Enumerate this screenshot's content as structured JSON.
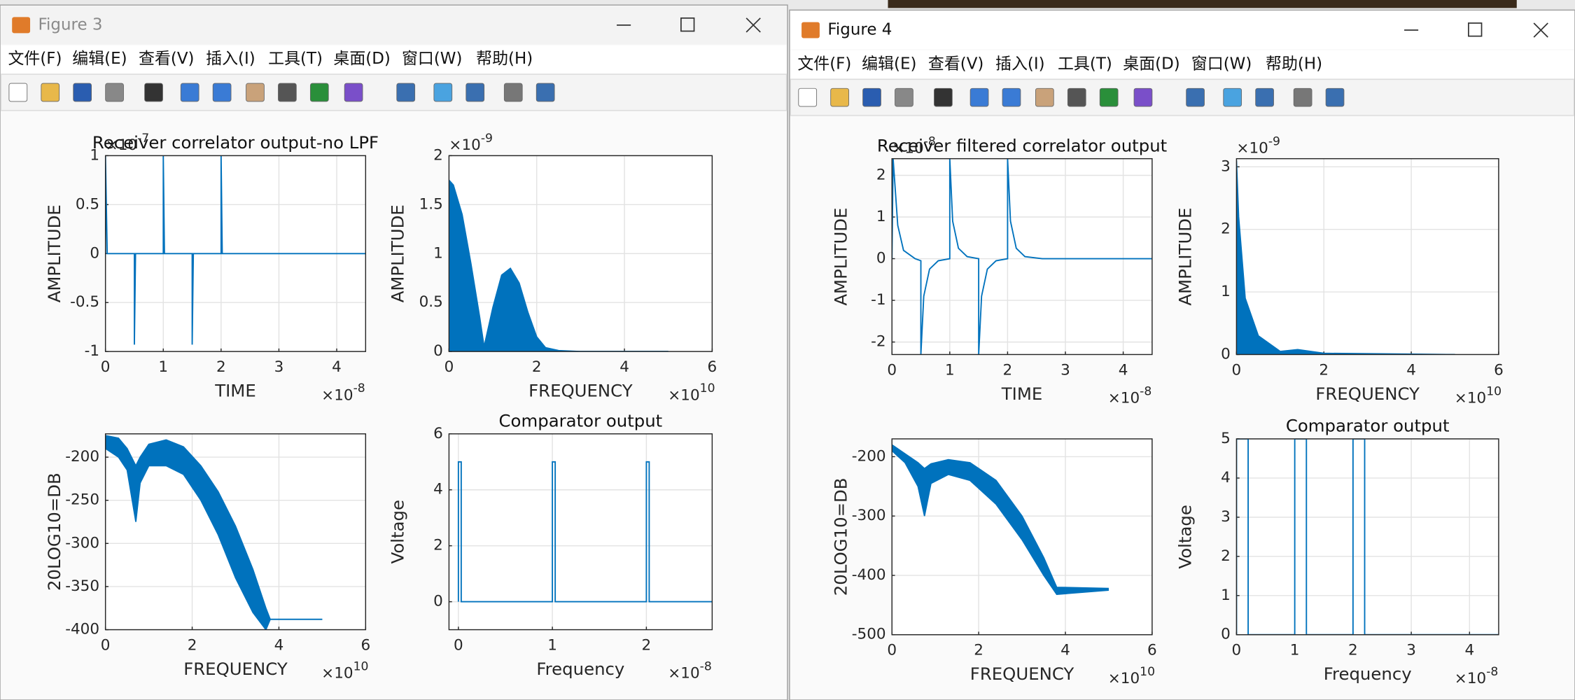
{
  "windows": [
    {
      "title": "Figure 3",
      "menu": [
        "文件(F)",
        "编辑(E)",
        "查看(V)",
        "插入(I)",
        "工具(T)",
        "桌面(D)",
        "窗口(W)",
        "帮助(H)"
      ],
      "plots": [
        {
          "title": "Receiver correlator output-no LPF",
          "xlabel": "TIME",
          "ylabel": "AMPLITUDE",
          "xlim": [
            0,
            4.5
          ],
          "ylim": [
            -1,
            1
          ],
          "xticks": [
            0,
            1,
            2,
            3,
            4
          ],
          "yticks": [
            -1,
            -0.5,
            0,
            0.5,
            1
          ],
          "xexp": {
            "base": "×10",
            "exp": "-8"
          },
          "yexp": {
            "base": "×10",
            "exp": "-7"
          },
          "kind": "line",
          "x": [
            0,
            0,
            0.03,
            0.5,
            0.5,
            0.52,
            1,
            1,
            1.02,
            1.5,
            1.5,
            1.52,
            2,
            2,
            2.02,
            4.5
          ],
          "y": [
            0,
            1,
            0,
            0,
            -0.93,
            0,
            0,
            1,
            0,
            0,
            -0.93,
            0,
            0,
            1,
            0,
            0
          ]
        },
        {
          "xlabel": "FREQUENCY",
          "ylabel": "AMPLITUDE",
          "xlim": [
            0,
            6
          ],
          "ylim": [
            0,
            2
          ],
          "xticks": [
            0,
            2,
            4,
            6
          ],
          "yticks": [
            0,
            0.5,
            1,
            1.5,
            2
          ],
          "xexp": {
            "base": "×10",
            "exp": "10"
          },
          "yexp": {
            "base": "×10",
            "exp": "-9"
          },
          "kind": "band",
          "x": [
            0,
            0.1,
            0.3,
            0.5,
            0.7,
            0.8,
            1.0,
            1.2,
            1.4,
            1.6,
            1.8,
            2.0,
            2.2,
            2.5,
            3,
            4,
            5
          ],
          "upper": [
            1.75,
            1.7,
            1.4,
            0.9,
            0.35,
            0.05,
            0.45,
            0.78,
            0.85,
            0.7,
            0.4,
            0.15,
            0.04,
            0.01,
            0,
            0,
            0
          ],
          "lower": [
            0,
            0,
            0,
            0,
            0,
            0,
            0,
            0,
            0,
            0,
            0,
            0,
            0,
            0,
            0,
            0,
            0
          ]
        },
        {
          "xlabel": "FREQUENCY",
          "ylabel": "20LOG10=DB",
          "xlim": [
            0,
            6
          ],
          "ylim": [
            -400,
            -173
          ],
          "xticks": [
            0,
            2,
            4,
            6
          ],
          "yticks": [
            -400,
            -350,
            -300,
            -250,
            -200
          ],
          "xexp": {
            "base": "×10",
            "exp": "10"
          },
          "kind": "band",
          "x": [
            0,
            0.3,
            0.5,
            0.7,
            0.8,
            1.0,
            1.4,
            1.8,
            2.2,
            2.6,
            3.0,
            3.4,
            3.7,
            3.8,
            5
          ],
          "upper": [
            -175,
            -178,
            -190,
            -210,
            -200,
            -185,
            -180,
            -188,
            -210,
            -240,
            -280,
            -330,
            -375,
            -388,
            -388
          ],
          "lower": [
            -190,
            -200,
            -215,
            -275,
            -230,
            -210,
            -210,
            -220,
            -250,
            -290,
            -340,
            -380,
            -400,
            -388,
            -388
          ]
        },
        {
          "title": "Comparator output",
          "xlabel": "Frequency",
          "ylabel": "Voltage",
          "xlim": [
            -0.1,
            2.7
          ],
          "ylim": [
            -1,
            6
          ],
          "xticks": [
            0,
            1,
            2
          ],
          "yticks": [
            0,
            2,
            4,
            6
          ],
          "xexp": {
            "base": "×10",
            "exp": "-8"
          },
          "kind": "line",
          "x": [
            0,
            0,
            0.03,
            0.03,
            1,
            1,
            1.03,
            1.03,
            2,
            2,
            2.03,
            2.03,
            2.7
          ],
          "y": [
            0,
            5,
            5,
            0,
            0,
            5,
            5,
            0,
            0,
            5,
            5,
            0,
            0
          ]
        }
      ]
    },
    {
      "title": "Figure 4",
      "menu": [
        "文件(F)",
        "编辑(E)",
        "查看(V)",
        "插入(I)",
        "工具(T)",
        "桌面(D)",
        "窗口(W)",
        "帮助(H)"
      ],
      "plots": [
        {
          "title": "Receiver filtered correlator output",
          "xlabel": "TIME",
          "ylabel": "AMPLITUDE",
          "xlim": [
            0,
            4.5
          ],
          "ylim": [
            -2.3,
            2.4
          ],
          "xticks": [
            0,
            1,
            2,
            3,
            4
          ],
          "yticks": [
            -2,
            -1,
            0,
            1,
            2
          ],
          "xexp": {
            "base": "×10",
            "exp": "-8"
          },
          "yexp": {
            "base": "×10",
            "exp": "-8"
          },
          "kind": "line",
          "x": [
            0,
            0.02,
            0.1,
            0.2,
            0.4,
            0.5,
            0.5,
            0.55,
            0.65,
            0.8,
            1.0,
            1.0,
            1.05,
            1.15,
            1.3,
            1.5,
            1.5,
            1.55,
            1.65,
            1.8,
            2.0,
            2.0,
            2.05,
            2.15,
            2.3,
            2.6,
            4.5
          ],
          "y": [
            0,
            2.4,
            0.8,
            0.2,
            0,
            -0.05,
            -2.3,
            -0.9,
            -0.25,
            -0.05,
            0,
            2.4,
            0.9,
            0.25,
            0.05,
            0,
            -2.3,
            -0.9,
            -0.25,
            -0.05,
            0,
            2.4,
            0.9,
            0.25,
            0.05,
            0,
            0
          ]
        },
        {
          "xlabel": "FREQUENCY",
          "ylabel": "AMPLITUDE",
          "xlim": [
            0,
            6
          ],
          "ylim": [
            0,
            3.13
          ],
          "xticks": [
            0,
            2,
            4,
            6
          ],
          "yticks": [
            0,
            1,
            2,
            3
          ],
          "xexp": {
            "base": "×10",
            "exp": "10"
          },
          "yexp": {
            "base": "×10",
            "exp": "-9"
          },
          "kind": "band",
          "x": [
            0,
            0.05,
            0.2,
            0.5,
            1.0,
            1.4,
            2,
            5
          ],
          "upper": [
            3.1,
            2.2,
            0.9,
            0.3,
            0.05,
            0.08,
            0.02,
            0
          ],
          "lower": [
            0,
            0,
            0,
            0,
            0,
            0,
            0,
            0
          ]
        },
        {
          "xlabel": "FREQUENCY",
          "ylabel": "20LOG10=DB",
          "xlim": [
            0,
            6
          ],
          "ylim": [
            -500,
            -170
          ],
          "xticks": [
            0,
            2,
            4,
            6
          ],
          "yticks": [
            -500,
            -400,
            -300,
            -200
          ],
          "xexp": {
            "base": "×10",
            "exp": "10"
          },
          "kind": "band",
          "x": [
            0,
            0.3,
            0.6,
            0.75,
            0.9,
            1.3,
            1.8,
            2.4,
            3.0,
            3.5,
            3.8,
            5
          ],
          "upper": [
            -180,
            -195,
            -210,
            -220,
            -212,
            -205,
            -210,
            -240,
            -300,
            -370,
            -420,
            -422
          ],
          "lower": [
            -190,
            -210,
            -250,
            -300,
            -245,
            -230,
            -240,
            -280,
            -340,
            -400,
            -432,
            -425
          ]
        },
        {
          "title": "Comparator output",
          "xlabel": "Frequency",
          "ylabel": "Voltage",
          "xlim": [
            0,
            4.5
          ],
          "ylim": [
            0,
            5
          ],
          "xticks": [
            0,
            1,
            2,
            3,
            4
          ],
          "yticks": [
            0,
            1,
            2,
            3,
            4,
            5
          ],
          "xexp": {
            "base": "×10",
            "exp": "-8"
          },
          "kind": "line",
          "x": [
            0,
            0,
            0.2,
            0.2,
            1,
            1,
            1.2,
            1.2,
            2,
            2,
            2.2,
            2.2,
            4.5
          ],
          "y": [
            0,
            5,
            5,
            0,
            0,
            5,
            5,
            0,
            0,
            5,
            5,
            0,
            0
          ]
        }
      ]
    }
  ]
}
